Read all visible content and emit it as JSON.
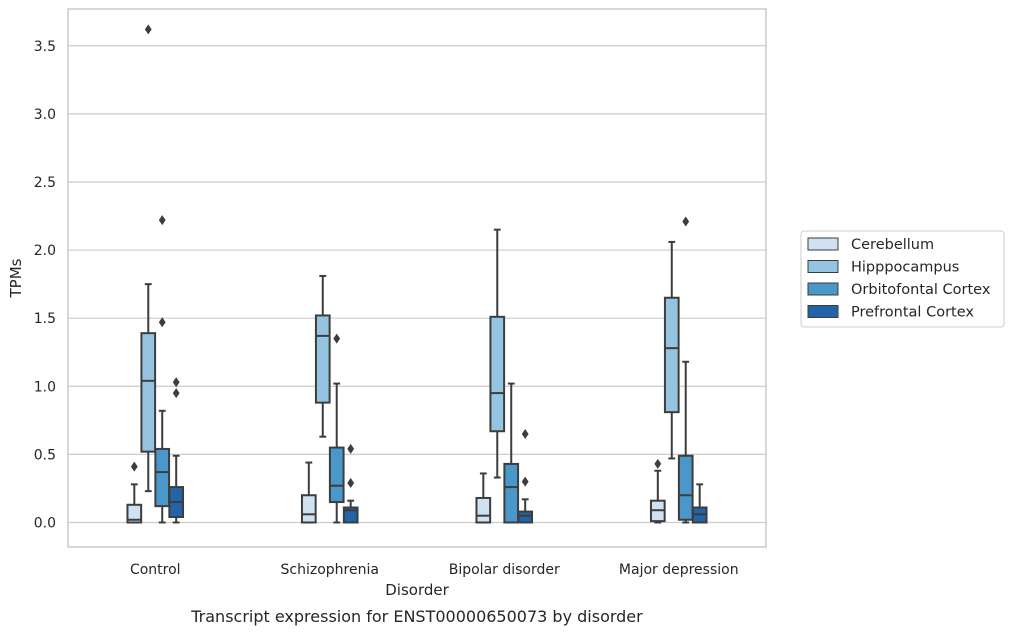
{
  "chart_data": {
    "type": "box",
    "title": "Transcript expression for ENST00000650073 by disorder",
    "xlabel": "Disorder",
    "ylabel": "TPMs",
    "ylim": [
      -0.18,
      3.77
    ],
    "yticks": [
      "0.0",
      "0.5",
      "1.0",
      "1.5",
      "2.0",
      "2.5",
      "3.0",
      "3.5"
    ],
    "categories": [
      "Control",
      "Schizophrenia",
      "Bipolar disorder",
      "Major depression"
    ],
    "grid": "horizontal",
    "legend_position": "right",
    "series": [
      {
        "name": "Cerebellum",
        "color": "#d0e1f2",
        "boxes": [
          {
            "whisker_low": 0.0,
            "q1": 0.0,
            "median": 0.02,
            "q3": 0.13,
            "whisker_high": 0.28,
            "outliers": [
              0.41
            ]
          },
          {
            "whisker_low": 0.0,
            "q1": 0.0,
            "median": 0.06,
            "q3": 0.2,
            "whisker_high": 0.44,
            "outliers": []
          },
          {
            "whisker_low": 0.0,
            "q1": 0.0,
            "median": 0.05,
            "q3": 0.18,
            "whisker_high": 0.36,
            "outliers": []
          },
          {
            "whisker_low": 0.0,
            "q1": 0.01,
            "median": 0.09,
            "q3": 0.16,
            "whisker_high": 0.38,
            "outliers": [
              0.43
            ]
          }
        ]
      },
      {
        "name": "Hipppocampus",
        "color": "#94c4df",
        "boxes": [
          {
            "whisker_low": 0.23,
            "q1": 0.52,
            "median": 1.04,
            "q3": 1.39,
            "whisker_high": 1.75,
            "outliers": [
              3.62
            ]
          },
          {
            "whisker_low": 0.63,
            "q1": 0.88,
            "median": 1.37,
            "q3": 1.52,
            "whisker_high": 1.81,
            "outliers": []
          },
          {
            "whisker_low": 0.33,
            "q1": 0.67,
            "median": 0.95,
            "q3": 1.51,
            "whisker_high": 2.15,
            "outliers": []
          },
          {
            "whisker_low": 0.47,
            "q1": 0.81,
            "median": 1.28,
            "q3": 1.65,
            "whisker_high": 2.06,
            "outliers": []
          }
        ]
      },
      {
        "name": "Orbitofontal Cortex",
        "color": "#4a98c9",
        "boxes": [
          {
            "whisker_low": 0.0,
            "q1": 0.12,
            "median": 0.37,
            "q3": 0.54,
            "whisker_high": 0.82,
            "outliers": [
              1.47,
              2.22
            ]
          },
          {
            "whisker_low": 0.0,
            "q1": 0.15,
            "median": 0.27,
            "q3": 0.55,
            "whisker_high": 1.02,
            "outliers": [
              1.35
            ]
          },
          {
            "whisker_low": 0.0,
            "q1": 0.0,
            "median": 0.26,
            "q3": 0.43,
            "whisker_high": 1.02,
            "outliers": []
          },
          {
            "whisker_low": 0.0,
            "q1": 0.02,
            "median": 0.2,
            "q3": 0.49,
            "whisker_high": 1.18,
            "outliers": [
              2.21
            ]
          }
        ]
      },
      {
        "name": "Prefrontal Cortex",
        "color": "#2264a8",
        "boxes": [
          {
            "whisker_low": 0.0,
            "q1": 0.04,
            "median": 0.15,
            "q3": 0.26,
            "whisker_high": 0.49,
            "outliers": [
              0.95,
              1.03
            ]
          },
          {
            "whisker_low": 0.0,
            "q1": 0.0,
            "median": 0.09,
            "q3": 0.11,
            "whisker_high": 0.16,
            "outliers": [
              0.29,
              0.54
            ]
          },
          {
            "whisker_low": 0.0,
            "q1": 0.0,
            "median": 0.05,
            "q3": 0.08,
            "whisker_high": 0.17,
            "outliers": [
              0.3,
              0.65
            ]
          },
          {
            "whisker_low": 0.0,
            "q1": 0.0,
            "median": 0.06,
            "q3": 0.11,
            "whisker_high": 0.28,
            "outliers": []
          }
        ]
      }
    ]
  }
}
